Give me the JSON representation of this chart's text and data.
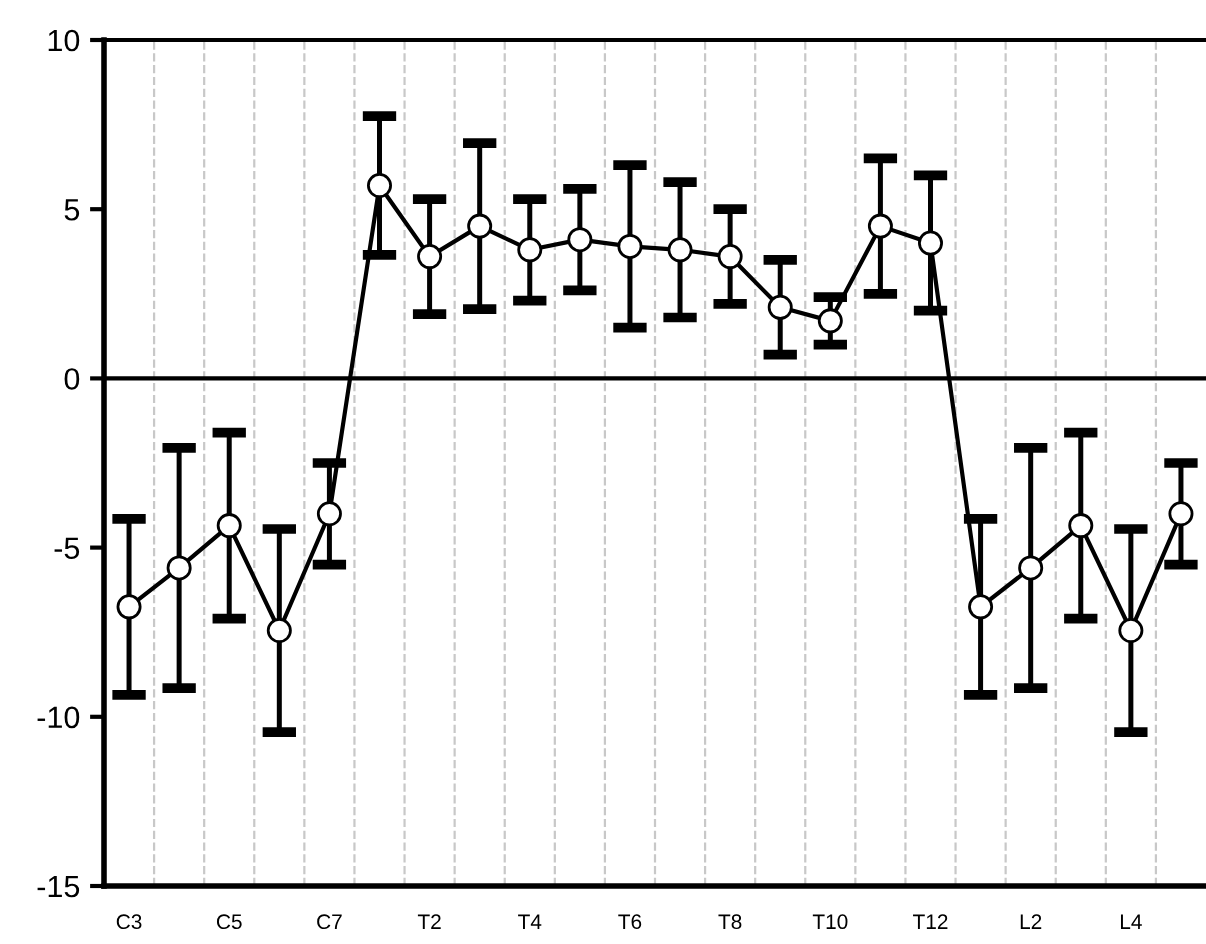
{
  "chart_data": {
    "type": "line",
    "categories": [
      "C3",
      null,
      "C5",
      null,
      "C7",
      null,
      "T2",
      null,
      "T4",
      null,
      "T6",
      null,
      "T8",
      null,
      "T10",
      null,
      "T12",
      null,
      "L2",
      null,
      "L4",
      null
    ],
    "series": [
      {
        "color": "#000000",
        "values": [
          -6.75,
          -5.6,
          -4.35,
          -7.45,
          -4.0,
          5.7,
          3.6,
          4.5,
          3.8,
          4.1,
          3.9,
          3.8,
          3.6,
          2.1,
          1.7,
          4.5,
          4.0,
          -6.75,
          -5.6,
          -4.35,
          -7.45,
          -4.0
        ],
        "errors": [
          2.6,
          3.55,
          2.75,
          3.0,
          1.5,
          2.05,
          1.7,
          2.45,
          1.5,
          1.5,
          2.4,
          2.0,
          1.4,
          1.4,
          0.7,
          2.0,
          2.0,
          2.6,
          3.55,
          2.75,
          3.0,
          1.5
        ]
      }
    ],
    "ylim": [
      -15,
      10
    ],
    "yticks": [
      -15,
      -10,
      -5,
      0,
      5,
      10
    ],
    "ref_lines": [
      {
        "axis": "y",
        "value": 0,
        "color": "#000000"
      }
    ],
    "grid": "x",
    "marker": "circle",
    "line_style": "solid",
    "legend": false
  }
}
